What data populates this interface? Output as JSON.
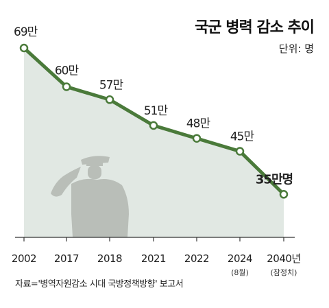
{
  "title": "국군 병력 감소 추이",
  "unit": "단위: 명",
  "source": "자료='병역자원감소 시대 국방정책방향' 보고서",
  "colors": {
    "line": "#4a7a3a",
    "area": "#e1e8e3",
    "marker_fill": "#ffffff",
    "axis": "#333333",
    "silhouette": "#b3b7b1"
  },
  "icons": {
    "soldier": "saluting-soldier-silhouette"
  },
  "chart_data": {
    "type": "line",
    "title": "국군 병력 감소 추이",
    "unit": "단위: 명",
    "categories": [
      "2002",
      "2017",
      "2018",
      "2021",
      "2022",
      "2024",
      "2040년"
    ],
    "sub_labels": [
      "",
      "",
      "",
      "",
      "",
      "(8월)",
      "(잠정치)"
    ],
    "values": [
      69,
      60,
      57,
      51,
      48,
      45,
      35
    ],
    "value_labels": [
      "69만",
      "60만",
      "57만",
      "51만",
      "48만",
      "45만",
      "35만명"
    ],
    "highlight_last": true,
    "ylim": [
      25,
      69
    ],
    "grid": false,
    "legend": "none"
  }
}
